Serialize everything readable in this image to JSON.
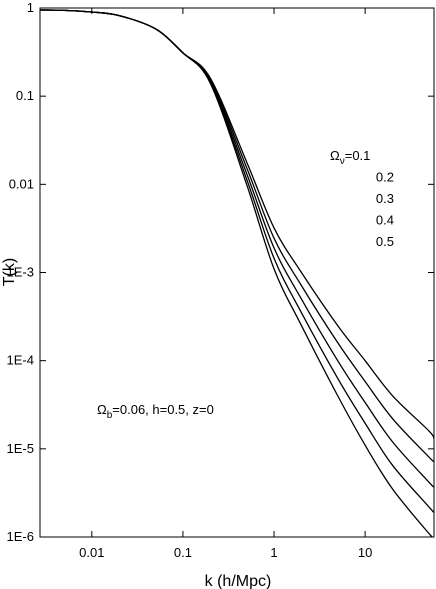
{
  "chart_data": {
    "type": "line",
    "x_label": "k (h/Mpc)",
    "y_label": "T(k)",
    "x": [
      0.0027,
      0.005,
      0.01,
      0.02,
      0.05,
      0.1,
      0.2,
      0.5,
      1,
      2,
      5,
      10,
      20,
      50,
      57
    ],
    "series": [
      {
        "name": "0.1",
        "color": "#000000",
        "values": [
          0.95,
          0.94,
          0.9,
          0.82,
          0.58,
          0.31,
          0.16,
          0.018,
          0.0032,
          0.001,
          0.00025,
          0.0001,
          4e-05,
          1.6e-05,
          1.3e-05
        ]
      },
      {
        "name": "0.2",
        "color": "#000000",
        "values": [
          0.95,
          0.94,
          0.9,
          0.82,
          0.58,
          0.31,
          0.155,
          0.0155,
          0.00245,
          0.00071,
          0.00016,
          5.8e-05,
          2.2e-05,
          8.1e-06,
          7.2e-06
        ]
      },
      {
        "name": "0.3",
        "color": "#000000",
        "values": [
          0.95,
          0.94,
          0.9,
          0.82,
          0.58,
          0.31,
          0.15,
          0.0133,
          0.0019,
          0.0005,
          0.0001,
          3.35e-05,
          1.2e-05,
          4.2e-06,
          3.7e-06
        ]
      },
      {
        "name": "0.4",
        "color": "#000000",
        "values": [
          0.95,
          0.94,
          0.9,
          0.82,
          0.58,
          0.31,
          0.145,
          0.0115,
          0.00145,
          0.00035,
          6.3e-05,
          1.95e-05,
          6.5e-06,
          2.2e-06,
          1.9e-06
        ]
      },
      {
        "name": "0.5",
        "color": "#000000",
        "values": [
          0.95,
          0.94,
          0.9,
          0.82,
          0.58,
          0.31,
          0.14,
          0.01,
          0.0011,
          0.00025,
          4e-05,
          1.1e-05,
          3.5e-06,
          1.1e-06,
          9.8e-07
        ]
      }
    ],
    "legend_prefix": {
      "symbol": "Ω",
      "subscript": "ν",
      "equals": "="
    },
    "annotation": {
      "symbol": "Ω",
      "subscript": "b",
      "text": "=0.06, h=0.5, z=0"
    },
    "xlim": [
      0.0027,
      57
    ],
    "ylim": [
      1e-06,
      1
    ],
    "xscale": "log",
    "yscale": "log",
    "xticks": [
      0.01,
      0.1,
      1,
      10
    ],
    "yticks": [
      1,
      0.1,
      0.01,
      {
        "value": 0.001,
        "label": "1E-3"
      },
      {
        "value": 0.0001,
        "label": "1E-4"
      },
      {
        "value": 1e-05,
        "label": "1E-5"
      },
      {
        "value": 1e-06,
        "label": "1E-6"
      }
    ],
    "grid": false
  }
}
